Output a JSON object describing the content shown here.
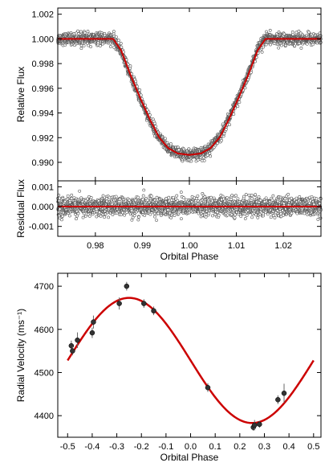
{
  "chart_data": [
    {
      "type": "scatter",
      "panel": "transit-light-curve",
      "xlabel": "",
      "ylabel": "Relative Flux",
      "xlim": [
        0.972,
        1.028
      ],
      "ylim": [
        0.9885,
        1.0025
      ],
      "yticks": [
        0.99,
        0.992,
        0.994,
        0.996,
        0.998,
        1.0,
        1.002
      ],
      "ytick_labels": [
        "0.990",
        "0.992",
        "0.994",
        "0.996",
        "0.998",
        "1.000",
        "1.002"
      ],
      "xticks": [
        0.98,
        0.99,
        1.0,
        1.01,
        1.02
      ],
      "xtick_labels": [],
      "model": {
        "color": "#cc0000",
        "baseline": 1.0,
        "depth_min": 0.9906,
        "x": [
          0.972,
          0.9838,
          0.9855,
          0.9875,
          0.9895,
          0.9915,
          0.9935,
          0.9955,
          0.9975,
          1.0,
          1.0025,
          1.0045,
          1.0065,
          1.0085,
          1.0105,
          1.0125,
          1.0145,
          1.0162,
          1.028
        ],
        "y": [
          1.0,
          1.0,
          0.99905,
          0.99705,
          0.99525,
          0.99355,
          0.99205,
          0.99115,
          0.99072,
          0.9906,
          0.99072,
          0.99115,
          0.99205,
          0.99355,
          0.99525,
          0.99705,
          0.99905,
          1.0,
          1.0
        ]
      },
      "points": {
        "color": "#555555",
        "scatter_sigma": 0.00022
      },
      "grid": false
    },
    {
      "type": "scatter",
      "panel": "residuals",
      "xlabel": "Orbital Phase",
      "ylabel": "Residual Flux",
      "xlim": [
        0.972,
        1.028
      ],
      "ylim": [
        -0.0015,
        0.0013
      ],
      "yticks": [
        -0.001,
        0.0,
        0.001
      ],
      "ytick_labels": [
        "-0.001",
        "0.000",
        "0.001"
      ],
      "xticks": [
        0.98,
        0.99,
        1.0,
        1.01,
        1.02
      ],
      "xtick_labels": [
        "0.98",
        "0.99",
        "1.00",
        "1.01",
        "1.02"
      ],
      "model": {
        "color": "#cc0000",
        "value": 0.0
      },
      "points": {
        "color": "#555555",
        "scatter_sigma": 0.00022
      },
      "grid": false
    },
    {
      "type": "scatter",
      "panel": "radial-velocity",
      "xlabel": "Orbital Phase",
      "ylabel": "Radial Velocity (ms⁻¹)",
      "xlim": [
        -0.54,
        0.53
      ],
      "ylim": [
        4350,
        4730
      ],
      "yticks": [
        4400,
        4500,
        4600,
        4700
      ],
      "ytick_labels": [
        "4400",
        "4500",
        "4600",
        "4700"
      ],
      "xticks": [
        -0.5,
        -0.4,
        -0.3,
        -0.2,
        -0.1,
        0.0,
        0.1,
        0.2,
        0.3,
        0.4,
        0.5
      ],
      "xtick_labels": [
        "-0.5",
        "-0.4",
        "-0.3",
        "-0.2",
        "-0.1",
        "0.0",
        "0.1",
        "0.2",
        "0.3",
        "0.4",
        "0.5"
      ],
      "model": {
        "color": "#cc0000",
        "gamma": 4528,
        "K": 145,
        "phase_of_max": -0.25,
        "x_range": [
          -0.5,
          0.5
        ]
      },
      "points": {
        "color": "#333333",
        "x": [
          -0.485,
          -0.48,
          -0.46,
          -0.4,
          -0.395,
          -0.29,
          -0.26,
          -0.19,
          -0.15,
          0.07,
          0.255,
          0.26,
          0.28,
          0.355,
          0.38
        ],
        "y": [
          4562,
          4550,
          4575,
          4592,
          4617,
          4660,
          4700,
          4660,
          4643,
          4465,
          4373,
          4378,
          4380,
          4437,
          4452
        ],
        "err": [
          12,
          10,
          18,
          12,
          15,
          14,
          10,
          10,
          10,
          10,
          8,
          12,
          8,
          10,
          22
        ]
      },
      "grid": false
    }
  ]
}
